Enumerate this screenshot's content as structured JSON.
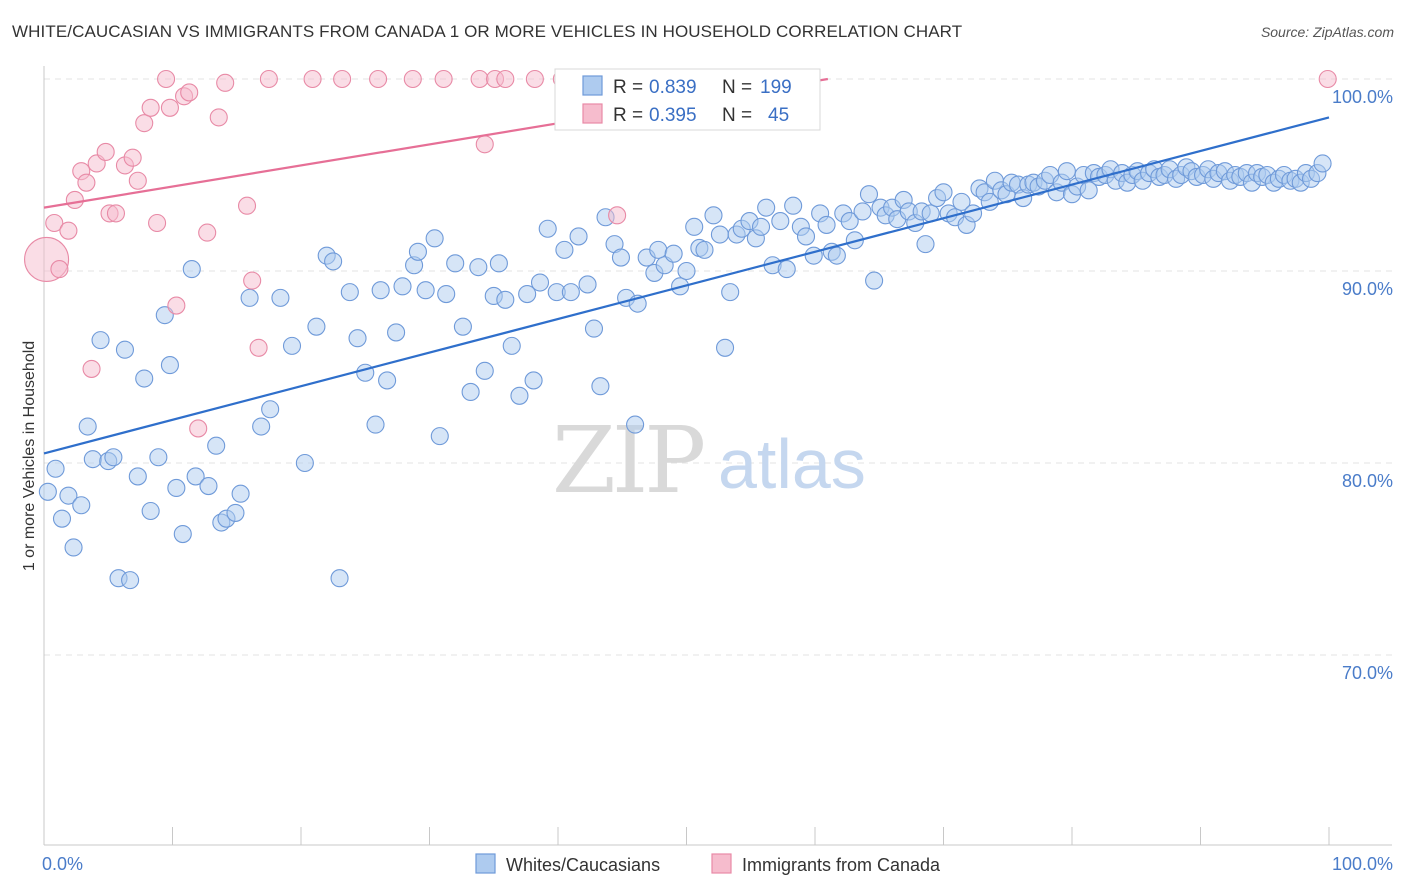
{
  "title": "WHITE/CAUCASIAN VS IMMIGRANTS FROM CANADA 1 OR MORE VEHICLES IN HOUSEHOLD CORRELATION CHART",
  "source": "Source: ZipAtlas.com",
  "watermark": {
    "zip": "ZIP",
    "atlas": "atlas"
  },
  "chart_data": {
    "type": "scatter",
    "title": "WHITE/CAUCASIAN VS IMMIGRANTS FROM CANADA 1 OR MORE VEHICLES IN HOUSEHOLD CORRELATION CHART",
    "xlabel": "",
    "ylabel": "1 or more Vehicles in Household",
    "xlim": [
      0,
      100
    ],
    "ylim": [
      59,
      100.8
    ],
    "x_tick_labels": [
      "0.0%",
      "100.0%"
    ],
    "y_ticks": [
      {
        "value": 100,
        "label": "100.0%"
      },
      {
        "value": 90,
        "label": "90.0%"
      },
      {
        "value": 80,
        "label": "80.0%"
      },
      {
        "value": 70,
        "label": "70.0%"
      }
    ],
    "grid": true,
    "legend_position": "bottom-center",
    "colors": {
      "blue_fill": "#aecbef",
      "blue_stroke": "#6f9ad9",
      "blue_line": "#2f6fcb",
      "pink_fill": "#f6bccd",
      "pink_stroke": "#e88aa6",
      "pink_line": "#e66f96"
    },
    "stats": [
      {
        "series": "Whites/Caucasians",
        "r_label": "R =",
        "r": "0.839",
        "n_label": "N =",
        "n": "199"
      },
      {
        "series": "Immigrants from Canada",
        "r_label": "R =",
        "r": "0.395",
        "n_label": "N =",
        "n": "45"
      }
    ],
    "series": [
      {
        "name": "Whites/Caucasians",
        "trend": [
          [
            0,
            80.5
          ],
          [
            100,
            98.0
          ]
        ],
        "points": [
          [
            0.3,
            78.5
          ],
          [
            0.9,
            79.7
          ],
          [
            1.4,
            77.1
          ],
          [
            1.9,
            78.3
          ],
          [
            2.3,
            75.6
          ],
          [
            2.9,
            77.8
          ],
          [
            3.4,
            81.9
          ],
          [
            3.8,
            80.2
          ],
          [
            4.4,
            86.4
          ],
          [
            5.0,
            80.1
          ],
          [
            5.4,
            80.3
          ],
          [
            5.8,
            74.0
          ],
          [
            6.3,
            85.9
          ],
          [
            6.7,
            73.9
          ],
          [
            7.3,
            79.3
          ],
          [
            7.8,
            84.4
          ],
          [
            8.3,
            77.5
          ],
          [
            8.9,
            80.3
          ],
          [
            9.4,
            87.7
          ],
          [
            9.8,
            85.1
          ],
          [
            10.3,
            78.7
          ],
          [
            10.8,
            76.3
          ],
          [
            11.5,
            90.1
          ],
          [
            11.8,
            79.3
          ],
          [
            12.8,
            78.8
          ],
          [
            13.4,
            80.9
          ],
          [
            13.8,
            76.9
          ],
          [
            14.2,
            77.1
          ],
          [
            14.9,
            77.4
          ],
          [
            15.3,
            78.4
          ],
          [
            16.0,
            88.6
          ],
          [
            16.9,
            81.9
          ],
          [
            17.6,
            82.8
          ],
          [
            18.4,
            88.6
          ],
          [
            19.3,
            86.1
          ],
          [
            20.3,
            80.0
          ],
          [
            21.2,
            87.1
          ],
          [
            22.0,
            90.8
          ],
          [
            22.5,
            90.5
          ],
          [
            23.0,
            74.0
          ],
          [
            23.8,
            88.9
          ],
          [
            24.4,
            86.5
          ],
          [
            25.0,
            84.7
          ],
          [
            25.8,
            82.0
          ],
          [
            26.2,
            89.0
          ],
          [
            26.7,
            84.3
          ],
          [
            27.4,
            86.8
          ],
          [
            27.9,
            89.2
          ],
          [
            28.8,
            90.3
          ],
          [
            29.1,
            91.0
          ],
          [
            29.7,
            89.0
          ],
          [
            30.4,
            91.7
          ],
          [
            30.8,
            81.4
          ],
          [
            31.3,
            88.8
          ],
          [
            32.0,
            90.4
          ],
          [
            32.6,
            87.1
          ],
          [
            33.2,
            83.7
          ],
          [
            33.8,
            90.2
          ],
          [
            34.3,
            84.8
          ],
          [
            35.0,
            88.7
          ],
          [
            35.4,
            90.4
          ],
          [
            35.9,
            88.5
          ],
          [
            36.4,
            86.1
          ],
          [
            37.0,
            83.5
          ],
          [
            37.6,
            88.8
          ],
          [
            38.1,
            84.3
          ],
          [
            38.6,
            89.4
          ],
          [
            39.2,
            92.2
          ],
          [
            39.9,
            88.9
          ],
          [
            40.5,
            91.1
          ],
          [
            41.0,
            88.9
          ],
          [
            41.6,
            91.8
          ],
          [
            42.3,
            89.3
          ],
          [
            42.8,
            87.0
          ],
          [
            43.3,
            84.0
          ],
          [
            43.7,
            92.8
          ],
          [
            44.4,
            91.4
          ],
          [
            44.9,
            90.7
          ],
          [
            45.3,
            88.6
          ],
          [
            46.0,
            82.0
          ],
          [
            46.2,
            88.3
          ],
          [
            46.9,
            90.7
          ],
          [
            47.5,
            89.9
          ],
          [
            47.8,
            91.1
          ],
          [
            48.3,
            90.3
          ],
          [
            49.0,
            90.9
          ],
          [
            49.5,
            89.2
          ],
          [
            50.0,
            90.0
          ],
          [
            50.6,
            92.3
          ],
          [
            51.0,
            91.2
          ],
          [
            51.4,
            91.1
          ],
          [
            52.1,
            92.9
          ],
          [
            52.6,
            91.9
          ],
          [
            53.0,
            86.0
          ],
          [
            53.4,
            88.9
          ],
          [
            53.9,
            91.9
          ],
          [
            54.3,
            92.2
          ],
          [
            54.9,
            92.6
          ],
          [
            55.4,
            91.7
          ],
          [
            55.8,
            92.3
          ],
          [
            56.2,
            93.3
          ],
          [
            56.7,
            90.3
          ],
          [
            57.3,
            92.6
          ],
          [
            57.8,
            90.1
          ],
          [
            58.3,
            93.4
          ],
          [
            58.9,
            92.3
          ],
          [
            59.3,
            91.8
          ],
          [
            59.9,
            90.8
          ],
          [
            60.4,
            93.0
          ],
          [
            60.9,
            92.4
          ],
          [
            61.3,
            91.0
          ],
          [
            61.7,
            90.8
          ],
          [
            62.2,
            93.0
          ],
          [
            62.7,
            92.6
          ],
          [
            63.1,
            91.6
          ],
          [
            63.7,
            93.1
          ],
          [
            64.2,
            94.0
          ],
          [
            64.6,
            89.5
          ],
          [
            65.1,
            93.3
          ],
          [
            65.5,
            92.9
          ],
          [
            66.0,
            93.3
          ],
          [
            66.4,
            92.7
          ],
          [
            66.9,
            93.7
          ],
          [
            67.3,
            93.1
          ],
          [
            67.8,
            92.5
          ],
          [
            68.3,
            93.1
          ],
          [
            68.6,
            91.4
          ],
          [
            69.0,
            93.0
          ],
          [
            69.5,
            93.8
          ],
          [
            70.0,
            94.1
          ],
          [
            70.4,
            93.0
          ],
          [
            70.9,
            92.8
          ],
          [
            71.4,
            93.6
          ],
          [
            71.8,
            92.4
          ],
          [
            72.3,
            93.0
          ],
          [
            72.8,
            94.3
          ],
          [
            73.2,
            94.1
          ],
          [
            73.6,
            93.6
          ],
          [
            74.0,
            94.7
          ],
          [
            74.5,
            94.2
          ],
          [
            74.9,
            94.0
          ],
          [
            75.3,
            94.6
          ],
          [
            75.8,
            94.5
          ],
          [
            76.2,
            93.8
          ],
          [
            76.6,
            94.5
          ],
          [
            77.0,
            94.6
          ],
          [
            77.4,
            94.4
          ],
          [
            77.9,
            94.7
          ],
          [
            78.3,
            95.0
          ],
          [
            78.8,
            94.1
          ],
          [
            79.2,
            94.6
          ],
          [
            79.6,
            95.2
          ],
          [
            80.0,
            94.0
          ],
          [
            80.4,
            94.4
          ],
          [
            80.9,
            95.0
          ],
          [
            81.3,
            94.2
          ],
          [
            81.7,
            95.1
          ],
          [
            82.1,
            94.9
          ],
          [
            82.6,
            95.0
          ],
          [
            83.0,
            95.3
          ],
          [
            83.4,
            94.7
          ],
          [
            83.9,
            95.1
          ],
          [
            84.3,
            94.6
          ],
          [
            84.7,
            95.0
          ],
          [
            85.1,
            95.2
          ],
          [
            85.5,
            94.7
          ],
          [
            86.0,
            95.1
          ],
          [
            86.4,
            95.3
          ],
          [
            86.8,
            94.9
          ],
          [
            87.2,
            95.0
          ],
          [
            87.6,
            95.3
          ],
          [
            88.1,
            94.8
          ],
          [
            88.5,
            95.0
          ],
          [
            88.9,
            95.4
          ],
          [
            89.3,
            95.2
          ],
          [
            89.7,
            94.9
          ],
          [
            90.2,
            95.0
          ],
          [
            90.6,
            95.3
          ],
          [
            91.0,
            94.8
          ],
          [
            91.4,
            95.1
          ],
          [
            91.9,
            95.2
          ],
          [
            92.3,
            94.7
          ],
          [
            92.7,
            95.0
          ],
          [
            93.1,
            94.9
          ],
          [
            93.6,
            95.1
          ],
          [
            94.0,
            94.6
          ],
          [
            94.4,
            95.1
          ],
          [
            94.8,
            94.9
          ],
          [
            95.2,
            95.0
          ],
          [
            95.7,
            94.6
          ],
          [
            96.1,
            94.8
          ],
          [
            96.5,
            95.0
          ],
          [
            97.0,
            94.7
          ],
          [
            97.4,
            94.8
          ],
          [
            97.8,
            94.6
          ],
          [
            98.2,
            95.1
          ],
          [
            98.6,
            94.8
          ],
          [
            99.1,
            95.1
          ],
          [
            99.5,
            95.6
          ]
        ]
      },
      {
        "name": "Immigrants from Canada",
        "trend": [
          [
            0,
            93.3
          ],
          [
            61,
            100.0
          ]
        ],
        "points": [
          [
            0.2,
            90.6
          ],
          [
            0.8,
            92.5
          ],
          [
            1.2,
            90.1
          ],
          [
            1.9,
            92.1
          ],
          [
            2.4,
            93.7
          ],
          [
            2.9,
            95.2
          ],
          [
            3.3,
            94.6
          ],
          [
            4.1,
            95.6
          ],
          [
            4.8,
            96.2
          ],
          [
            5.1,
            93.0
          ],
          [
            5.6,
            93.0
          ],
          [
            6.3,
            95.5
          ],
          [
            6.9,
            95.9
          ],
          [
            7.3,
            94.7
          ],
          [
            7.8,
            97.7
          ],
          [
            8.3,
            98.5
          ],
          [
            8.8,
            92.5
          ],
          [
            9.5,
            100.0
          ],
          [
            9.8,
            98.5
          ],
          [
            10.3,
            88.2
          ],
          [
            10.9,
            99.1
          ],
          [
            11.3,
            99.3
          ],
          [
            12.0,
            81.8
          ],
          [
            12.7,
            92.0
          ],
          [
            13.6,
            98.0
          ],
          [
            14.1,
            99.8
          ],
          [
            15.8,
            93.4
          ],
          [
            16.2,
            89.5
          ],
          [
            16.7,
            86.0
          ],
          [
            17.5,
            100.0
          ],
          [
            20.9,
            100.0
          ],
          [
            23.2,
            100.0
          ],
          [
            26.0,
            100.0
          ],
          [
            28.7,
            100.0
          ],
          [
            31.1,
            100.0
          ],
          [
            33.9,
            100.0
          ],
          [
            35.1,
            100.0
          ],
          [
            34.3,
            96.6
          ],
          [
            35.9,
            100.0
          ],
          [
            38.2,
            100.0
          ],
          [
            40.3,
            100.0
          ],
          [
            43.5,
            100.0
          ],
          [
            44.6,
            92.9
          ],
          [
            99.9,
            100.0
          ],
          [
            3.7,
            84.9
          ]
        ]
      }
    ]
  }
}
